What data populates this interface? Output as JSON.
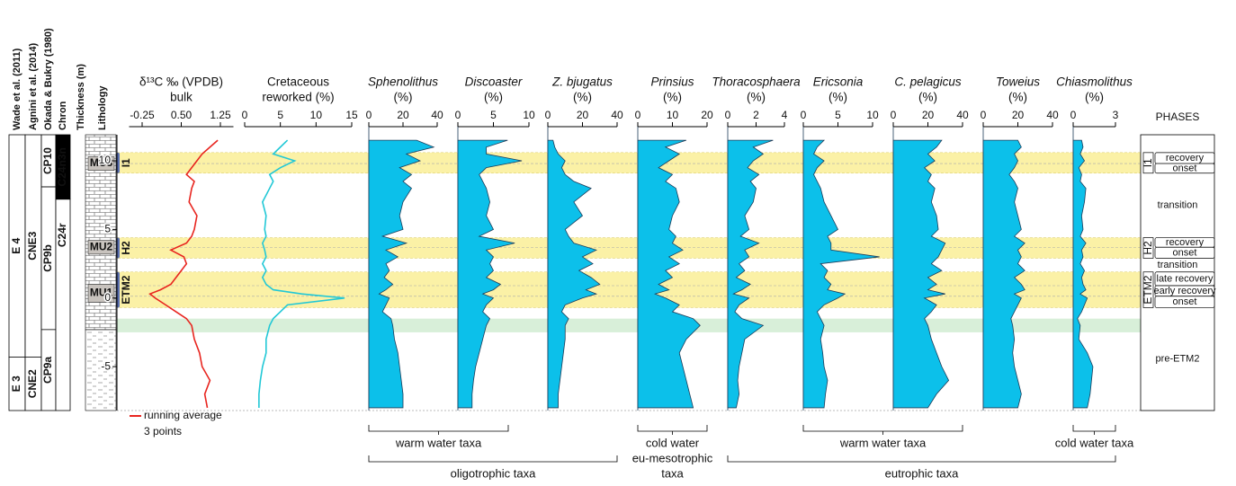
{
  "depth_axis": {
    "label": "Thickness (m)",
    "ylim": [
      -8.2,
      11.9
    ],
    "yticks": [
      -5,
      0,
      5,
      10
    ],
    "depths": [
      -8,
      -7,
      -6,
      -5,
      -4,
      -3,
      -2,
      -1.5,
      -1,
      -0.5,
      0,
      0.3,
      0.6,
      1,
      1.5,
      2,
      2.5,
      3,
      3.5,
      4,
      4.5,
      5,
      6,
      7,
      8,
      8.5,
      9,
      9.5,
      10,
      10.5,
      11,
      11.5
    ]
  },
  "strat_columns": [
    {
      "header": "Wade et al. (2011)",
      "labels": [
        "E 4",
        "E 3"
      ],
      "boundaries": [
        -4.3
      ]
    },
    {
      "header": "Agnini et al. (2014)",
      "labels": [
        "CNE3",
        "CNE2"
      ],
      "boundaries": [
        -4.3
      ]
    },
    {
      "header": "Okada & Bukry (1980)",
      "labels": [
        "CP10",
        "CP9b",
        "CP9a"
      ],
      "boundaries": [
        8.1,
        -2.3
      ]
    },
    {
      "header": "Chron",
      "labels": [
        "C24n3n",
        "C24r"
      ],
      "boundaries": [
        7.2
      ],
      "fills": [
        "#000000",
        "#ffffff"
      ]
    }
  ],
  "lithology": {
    "header": "Lithology",
    "units": [
      {
        "label": "MU3",
        "top": 10.3,
        "bottom": 9.3
      },
      {
        "label": "MU2",
        "top": 4.2,
        "bottom": 3.2
      },
      {
        "label": "MU1",
        "top": 1.0,
        "bottom": -0.3
      }
    ]
  },
  "intervals": [
    {
      "name": "I1",
      "top": 10.6,
      "bottom": 9.1,
      "dividers": [
        9.8
      ],
      "color": "#fbf1a6"
    },
    {
      "name": "H2",
      "top": 4.4,
      "bottom": 2.9,
      "dividers": [
        3.7
      ],
      "color": "#fbf1a6"
    },
    {
      "name": "ETM2",
      "top": 1.9,
      "bottom": -0.7,
      "dividers": [
        0.9,
        0.13
      ],
      "color": "#fbf1a6"
    },
    {
      "top": -1.5,
      "bottom": -2.5,
      "color": "#d8efd9"
    }
  ],
  "phases": {
    "header": "PHASES",
    "rows": [
      {
        "label": "recovery",
        "top": 10.6,
        "bottom": 9.8
      },
      {
        "label": "onset",
        "top": 9.8,
        "bottom": 9.1
      },
      {
        "label": "transition",
        "top": 9.1,
        "bottom": 4.4
      },
      {
        "label": "recovery",
        "top": 4.4,
        "bottom": 3.7
      },
      {
        "label": "onset",
        "top": 3.7,
        "bottom": 2.9
      },
      {
        "label": "transition",
        "top": 2.9,
        "bottom": 1.9
      },
      {
        "label": "late recovery",
        "top": 1.9,
        "bottom": 0.9
      },
      {
        "label": "early recovery",
        "top": 0.9,
        "bottom": 0.13
      },
      {
        "label": "onset",
        "top": 0.13,
        "bottom": -0.7
      },
      {
        "label": "pre-ETM2",
        "top": -0.7,
        "bottom": -8.2
      }
    ]
  },
  "legend": {
    "lines": [
      "running average",
      "3 points"
    ],
    "color": "#e8251f"
  },
  "taxa_groups": [
    {
      "label": [
        "warm water taxa"
      ]
    },
    {
      "label": [
        "cold water",
        "eu-mesotrophic",
        "taxa"
      ]
    },
    {
      "label": [
        "warm water taxa"
      ]
    },
    {
      "label": [
        "cold water taxa"
      ]
    },
    {
      "label": [
        "oligotrophic taxa"
      ]
    },
    {
      "label": [
        "eutrophic taxa"
      ]
    }
  ],
  "chart_data": [
    {
      "type": "line",
      "title": [
        "δ¹³C ‰ (VPDB)",
        "bulk"
      ],
      "italic": false,
      "color": "#e8251f",
      "xlim": [
        -0.5,
        1.5
      ],
      "xticks": [
        -0.25,
        {
          "value": 0.5,
          "label": "0.50"
        },
        1.25
      ],
      "values": [
        1,
        0.95,
        1.05,
        0.9,
        0.85,
        0.75,
        0.7,
        0.6,
        0.4,
        0.2,
        0,
        -0.1,
        0.1,
        0.3,
        0.4,
        0.5,
        0.6,
        0.55,
        0.3,
        0.6,
        0.7,
        0.75,
        0.8,
        0.65,
        0.7,
        0.75,
        0.6,
        0.7,
        0.8,
        0.9,
        1.05,
        1.2
      ]
    },
    {
      "type": "line",
      "title": [
        "Cretaceous",
        "reworked (%)"
      ],
      "italic": false,
      "color": "#22c8d6",
      "xlim": [
        0,
        15
      ],
      "xticks": [
        0,
        5,
        10,
        15
      ],
      "values": [
        2,
        2,
        2.2,
        2.5,
        3,
        3,
        3.5,
        4,
        5,
        6,
        14,
        8,
        4,
        3,
        2.5,
        3,
        2.5,
        3,
        2.8,
        2.5,
        3,
        2.8,
        3,
        2.5,
        3.5,
        4,
        3.5,
        5,
        7,
        4,
        5,
        6
      ]
    },
    {
      "type": "area",
      "title": [
        "Sphenolithus",
        "(%)"
      ],
      "italic": true,
      "color": "#0cc0ea",
      "xlim": [
        0,
        40
      ],
      "xticks": [
        0,
        20,
        40
      ],
      "values": [
        20,
        20,
        19,
        18,
        17,
        15,
        14,
        13,
        8,
        10,
        12,
        6,
        10,
        14,
        9,
        12,
        10,
        17,
        10,
        22,
        8,
        20,
        18,
        20,
        25,
        20,
        25,
        18,
        30,
        22,
        38,
        28
      ]
    },
    {
      "type": "area",
      "title": [
        "Discoaster",
        "(%)"
      ],
      "italic": true,
      "color": "#0cc0ea",
      "xlim": [
        0,
        10
      ],
      "xticks": [
        0,
        5,
        10
      ],
      "values": [
        2,
        2,
        2.2,
        2.5,
        3,
        3.5,
        4,
        4.5,
        3.5,
        4,
        5,
        3.5,
        5,
        6,
        4,
        5,
        4.5,
        5,
        4,
        8,
        3,
        5,
        4,
        4.5,
        4,
        3.5,
        3,
        4,
        9,
        4,
        4,
        7
      ]
    },
    {
      "type": "area",
      "title": [
        "Z. bjugatus",
        "(%)"
      ],
      "italic": true,
      "color": "#0cc0ea",
      "xlim": [
        0,
        40
      ],
      "xticks": [
        0,
        20,
        40
      ],
      "values": [
        6,
        6,
        7,
        8,
        9,
        10,
        10,
        12,
        8,
        10,
        20,
        28,
        22,
        30,
        25,
        18,
        26,
        20,
        28,
        15,
        12,
        10,
        20,
        15,
        25,
        15,
        10,
        8,
        10,
        6,
        4,
        3
      ]
    },
    {
      "type": "area",
      "title": [
        "Prinsius",
        "(%)"
      ],
      "italic": true,
      "color": "#0cc0ea",
      "xlim": [
        0,
        20
      ],
      "xticks": [
        0,
        10,
        20
      ],
      "values": [
        16,
        15,
        14,
        13,
        12,
        14,
        18,
        16,
        10,
        12,
        8,
        5,
        9,
        6,
        10,
        8,
        12,
        9,
        13,
        10,
        11,
        9,
        10,
        12,
        11,
        8,
        10,
        6,
        9,
        12,
        8,
        14
      ]
    },
    {
      "type": "area",
      "title": [
        "Thoracosphaera",
        "(%)"
      ],
      "italic": true,
      "color": "#0cc0ea",
      "xlim": [
        0,
        4
      ],
      "xticks": [
        0,
        2,
        4
      ],
      "values": [
        0.6,
        0.8,
        0.7,
        0.8,
        1,
        1.2,
        2.5,
        1,
        0.5,
        0.8,
        1.5,
        0.4,
        1,
        1.6,
        0.6,
        1.2,
        0.8,
        1.5,
        1.2,
        2.2,
        0.9,
        1.5,
        1.2,
        1.8,
        2,
        1.6,
        2.2,
        1.4,
        1.8,
        2.5,
        1.8,
        3.2
      ]
    },
    {
      "type": "area",
      "title": [
        "Ericsonia",
        "(%)"
      ],
      "italic": true,
      "color": "#0cc0ea",
      "xlim": [
        0,
        10
      ],
      "xticks": [
        0,
        5,
        10
      ],
      "values": [
        3,
        3.2,
        3.5,
        3,
        2.8,
        2.5,
        3,
        2.5,
        2,
        3,
        5,
        6,
        3.5,
        4,
        3,
        3.5,
        2.5,
        11,
        4,
        4,
        3.5,
        5,
        4,
        3,
        2.5,
        2,
        1.5,
        2,
        3,
        1.5,
        2,
        3
      ]
    },
    {
      "type": "area",
      "title": [
        "C. pelagicus",
        "(%)"
      ],
      "italic": true,
      "color": "#0cc0ea",
      "xlim": [
        0,
        40
      ],
      "xticks": [
        0,
        20,
        40
      ],
      "values": [
        20,
        25,
        32,
        28,
        25,
        22,
        20,
        18,
        22,
        25,
        18,
        30,
        20,
        25,
        20,
        28,
        22,
        26,
        28,
        30,
        22,
        26,
        25,
        22,
        24,
        20,
        22,
        18,
        24,
        20,
        25,
        28
      ]
    },
    {
      "type": "area",
      "title": [
        "Toweius",
        "(%)"
      ],
      "italic": true,
      "color": "#0cc0ea",
      "xlim": [
        0,
        40
      ],
      "xticks": [
        0,
        20,
        40
      ],
      "values": [
        20,
        22,
        20,
        18,
        17,
        18,
        17,
        16,
        18,
        20,
        22,
        18,
        24,
        22,
        18,
        24,
        20,
        22,
        20,
        24,
        18,
        22,
        20,
        18,
        20,
        18,
        15,
        18,
        20,
        18,
        22,
        20
      ]
    },
    {
      "type": "area",
      "title": [
        "Chiasmolithus",
        "(%)"
      ],
      "italic": true,
      "color": "#0cc0ea",
      "xlim": [
        0,
        3
      ],
      "xticks": [
        0,
        3
      ],
      "values": [
        1,
        1.2,
        1.3,
        1.4,
        1,
        0.4,
        0.5,
        0.3,
        0.6,
        0.8,
        1,
        0.5,
        0.9,
        0.7,
        0.6,
        0.8,
        0.5,
        0.7,
        0.6,
        0.9,
        0.5,
        0.7,
        0.6,
        0.8,
        0.9,
        0.5,
        0.6,
        0.4,
        0.8,
        0.5,
        0.7,
        0.6
      ]
    }
  ]
}
